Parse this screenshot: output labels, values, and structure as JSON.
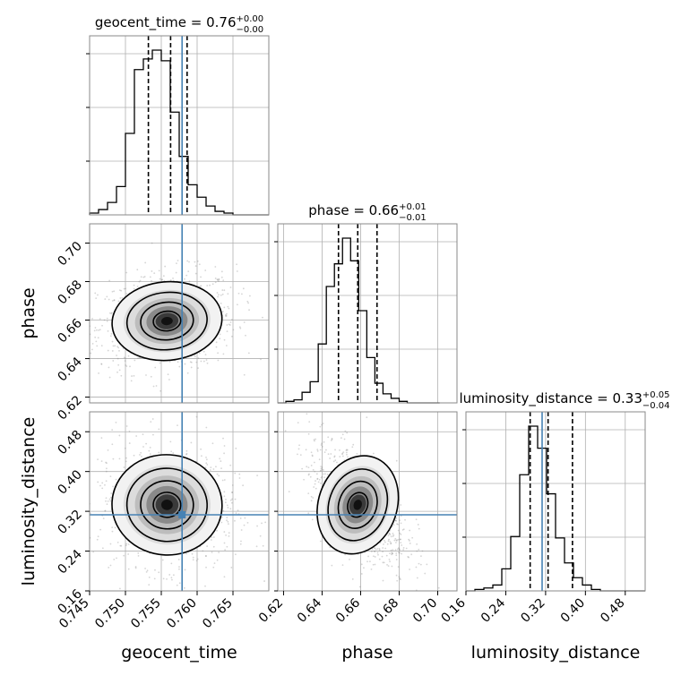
{
  "chart_data": {
    "type": "corner",
    "params": [
      {
        "key": "geocent_time",
        "label": "geocent_time",
        "title": {
          "prefix": "geocent_time = ",
          "value": "0.76",
          "up": "+0.00",
          "down": "−0.00"
        },
        "range": [
          0.745,
          0.77
        ],
        "ticks": [
          0.745,
          0.75,
          0.755,
          0.76,
          0.765
        ],
        "tick_labels": [
          "0.745",
          "0.750",
          "0.755",
          "0.760",
          "0.765"
        ],
        "quantiles": [
          0.7532,
          0.7563,
          0.7586
        ],
        "truth": 0.7579
      },
      {
        "key": "phase",
        "label": "phase",
        "title": {
          "prefix": "phase = ",
          "value": "0.66",
          "up": "+0.01",
          "down": "−0.01"
        },
        "range": [
          0.617,
          0.71
        ],
        "ticks": [
          0.62,
          0.64,
          0.66,
          0.68,
          0.7
        ],
        "tick_labels": [
          "0.62",
          "0.64",
          "0.66",
          "0.68",
          "0.70"
        ],
        "quantiles": [
          0.6485,
          0.6585,
          0.6685
        ],
        "truth": null
      },
      {
        "key": "luminosity_distance",
        "label": "luminosity_distance",
        "title": {
          "prefix": "luminosity_distance = ",
          "value": "0.33",
          "up": "+0.05",
          "down": "−0.04"
        },
        "range": [
          0.16,
          0.52
        ],
        "ticks": [
          0.16,
          0.24,
          0.32,
          0.4,
          0.48
        ],
        "tick_labels": [
          "0.16",
          "0.24",
          "0.32",
          "0.40",
          "0.48"
        ],
        "quantiles": [
          0.289,
          0.325,
          0.374
        ],
        "truth": 0.313
      }
    ],
    "histograms": [
      {
        "param": "geocent_time",
        "edges_start": 0.745,
        "bin_width": 0.00125,
        "counts": [
          1,
          3,
          7,
          16,
          46,
          82,
          88,
          93,
          87,
          58,
          33,
          17,
          10,
          5,
          2,
          1,
          0,
          0,
          0,
          0
        ]
      },
      {
        "param": "phase",
        "edges_start": 0.617,
        "bin_width": 0.0042,
        "counts": [
          0,
          1,
          2,
          7,
          14,
          39,
          77,
          92,
          109,
          94,
          61,
          30,
          13,
          6,
          3,
          1,
          0,
          0,
          0,
          0
        ]
      },
      {
        "param": "luminosity_distance",
        "edges_start": 0.16,
        "bin_width": 0.018,
        "counts": [
          0,
          1,
          2,
          4,
          15,
          37,
          79,
          112,
          97,
          66,
          36,
          19,
          9,
          4,
          1,
          0,
          0,
          0,
          0,
          0
        ]
      }
    ],
    "joint_2d": [
      {
        "x": "geocent_time",
        "y": "phase",
        "center": [
          0.7558,
          0.6595
        ],
        "sd": [
          0.0032,
          0.0085
        ],
        "corr": 0.15
      },
      {
        "x": "geocent_time",
        "y": "luminosity_distance",
        "center": [
          0.7558,
          0.333
        ],
        "sd": [
          0.0032,
          0.042
        ],
        "corr": -0.1
      },
      {
        "x": "phase",
        "y": "luminosity_distance",
        "center": [
          0.6585,
          0.333
        ],
        "sd": [
          0.0085,
          0.042
        ],
        "corr": -0.55
      }
    ],
    "grid": true,
    "colors": {
      "truth": "#4682b4",
      "hist": "#000000",
      "contour": "#000000",
      "grid": "#b0b0b0"
    }
  }
}
